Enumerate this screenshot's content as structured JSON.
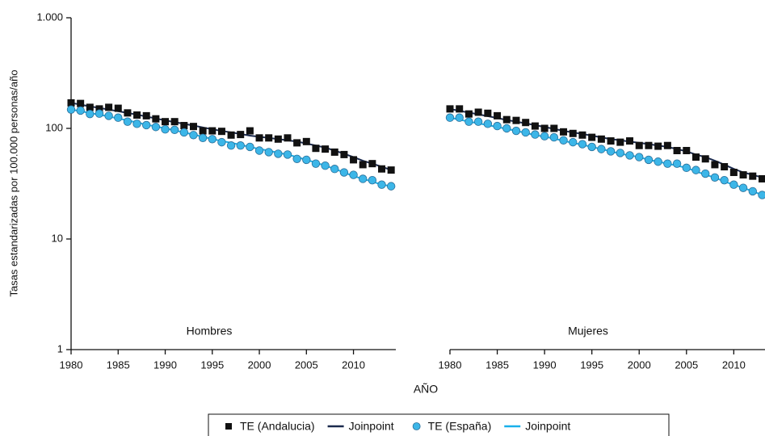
{
  "x_label": "AÑO",
  "chart_data": [
    {
      "type": "line",
      "subtitle": "Hombres",
      "y_label": "Tasas estandarizadas por 100.000 personas/año",
      "log_y": true,
      "ylim": [
        1,
        1000
      ],
      "yticks": [
        {
          "value": 1,
          "label": "1"
        },
        {
          "value": 10,
          "label": "10"
        },
        {
          "value": 100,
          "label": "100"
        },
        {
          "value": 1000,
          "label": "1.000"
        }
      ],
      "xlim": [
        1980,
        2014.5
      ],
      "xticks": [
        1980,
        1985,
        1990,
        1995,
        2000,
        2005,
        2010
      ],
      "x": [
        1980,
        1981,
        1982,
        1983,
        1984,
        1985,
        1986,
        1987,
        1988,
        1989,
        1990,
        1991,
        1992,
        1993,
        1994,
        1995,
        1996,
        1997,
        1998,
        1999,
        2000,
        2001,
        2002,
        2003,
        2004,
        2005,
        2006,
        2007,
        2008,
        2009,
        2010,
        2011,
        2012,
        2013,
        2014
      ],
      "series": [
        {
          "name": "TE (Andalucia)",
          "marker": "square",
          "color": "#111111",
          "values": [
            170,
            168,
            155,
            150,
            155,
            152,
            138,
            132,
            130,
            122,
            115,
            115,
            106,
            104,
            95,
            95,
            94,
            87,
            88,
            95,
            82,
            82,
            80,
            82,
            74,
            76,
            66,
            65,
            61,
            58,
            52,
            47,
            48,
            43,
            42
          ]
        },
        {
          "name": "Joinpoint",
          "marker": "line",
          "color": "#1b2a4e",
          "values": [
            170,
            164,
            158,
            153,
            148,
            143,
            138,
            133,
            128,
            123,
            118,
            114,
            110,
            106,
            102,
            98,
            95,
            92,
            89,
            86,
            84,
            82,
            80,
            78,
            76,
            73,
            70,
            67,
            63,
            59,
            55,
            51,
            48,
            45,
            42
          ]
        },
        {
          "name": "TE (España)",
          "marker": "circle",
          "color": "#3cb6e8",
          "values": [
            148,
            145,
            135,
            136,
            130,
            125,
            115,
            110,
            107,
            103,
            98,
            97,
            92,
            87,
            82,
            80,
            75,
            70,
            70,
            68,
            63,
            61,
            59,
            58,
            53,
            52,
            48,
            46,
            43,
            40,
            38,
            35,
            34,
            31,
            30
          ]
        },
        {
          "name": "Joinpoint",
          "marker": "line",
          "color": "#19b0ea",
          "values": [
            148,
            143,
            138,
            133,
            128,
            123,
            118,
            113,
            108,
            104,
            100,
            96,
            92,
            88,
            84,
            80,
            77,
            74,
            71,
            68,
            65,
            63,
            60,
            58,
            55,
            52,
            49,
            46,
            43,
            40,
            37,
            35,
            33,
            31,
            30
          ]
        }
      ]
    },
    {
      "type": "line",
      "subtitle": "Mujeres",
      "log_y": true,
      "ylim": [
        1,
        1000
      ],
      "xlim": [
        1980,
        2013.3
      ],
      "xticks": [
        1980,
        1985,
        1990,
        1995,
        2000,
        2005,
        2010
      ],
      "x": [
        1980,
        1981,
        1982,
        1983,
        1984,
        1985,
        1986,
        1987,
        1988,
        1989,
        1990,
        1991,
        1992,
        1993,
        1994,
        1995,
        1996,
        1997,
        1998,
        1999,
        2000,
        2001,
        2002,
        2003,
        2004,
        2005,
        2006,
        2007,
        2008,
        2009,
        2010,
        2011,
        2012,
        2013
      ],
      "series": [
        {
          "marker": "square",
          "color": "#111111",
          "values": [
            150,
            150,
            135,
            140,
            137,
            130,
            120,
            118,
            113,
            105,
            100,
            100,
            93,
            90,
            87,
            83,
            80,
            77,
            75,
            77,
            70,
            70,
            69,
            70,
            63,
            63,
            55,
            53,
            47,
            45,
            40,
            38,
            37,
            35
          ]
        },
        {
          "marker": "line",
          "color": "#1b2a4e",
          "values": [
            150,
            144,
            139,
            134,
            129,
            124,
            119,
            115,
            111,
            107,
            103,
            99,
            95,
            92,
            89,
            86,
            83,
            80,
            78,
            76,
            74,
            72,
            70,
            68,
            65,
            62,
            58,
            55,
            51,
            47,
            43,
            40,
            38,
            36
          ]
        },
        {
          "marker": "circle",
          "color": "#3cb6e8",
          "values": [
            125,
            125,
            115,
            115,
            110,
            105,
            100,
            95,
            92,
            88,
            85,
            83,
            78,
            75,
            72,
            68,
            65,
            62,
            60,
            57,
            55,
            52,
            50,
            48,
            48,
            44,
            42,
            39,
            36,
            34,
            31,
            29,
            27,
            25
          ]
        },
        {
          "marker": "line",
          "color": "#19b0ea",
          "values": [
            125,
            120,
            115,
            111,
            107,
            103,
            99,
            95,
            91,
            87,
            84,
            81,
            77,
            74,
            71,
            68,
            65,
            62,
            59,
            57,
            55,
            52,
            50,
            48,
            46,
            44,
            41,
            38,
            36,
            33,
            31,
            29,
            27,
            25
          ]
        }
      ]
    }
  ]
}
